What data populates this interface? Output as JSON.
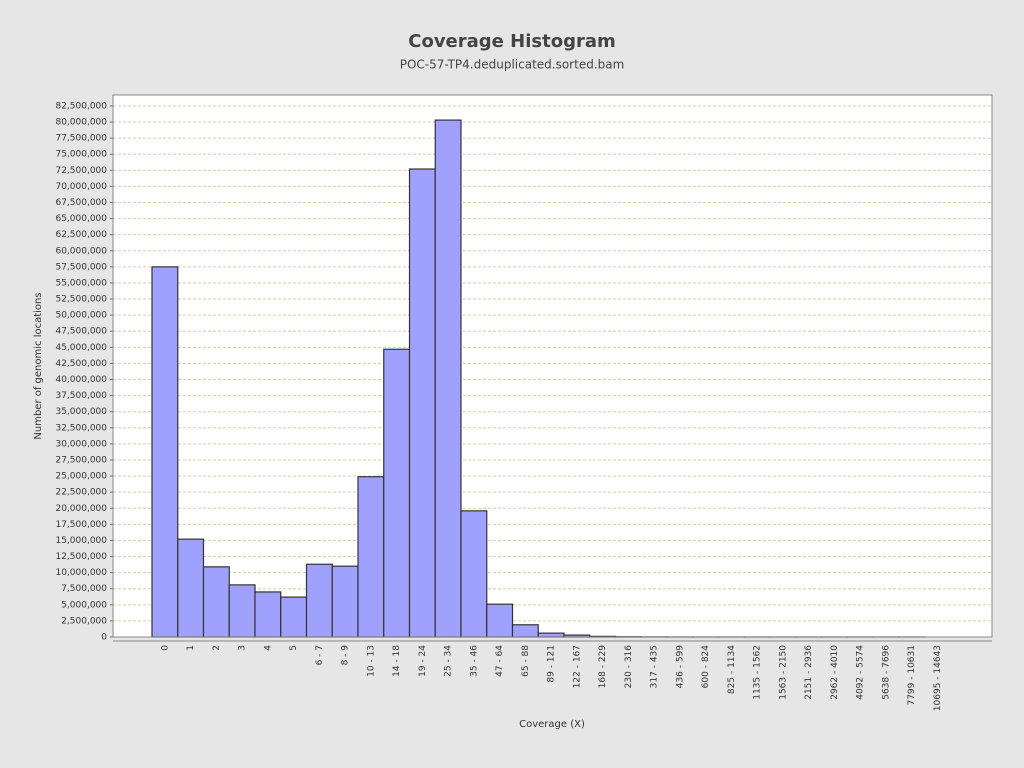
{
  "chart_data": {
    "type": "bar",
    "title": "Coverage Histogram",
    "subtitle": "POC-57-TP4.deduplicated.sorted.bam",
    "x_label": "Coverage (X)",
    "y_label": "Number of genomic locations",
    "categories": [
      "0",
      "1",
      "2",
      "3",
      "4",
      "5",
      "6 - 7",
      "8 - 9",
      "10 - 13",
      "14 - 18",
      "19 - 24",
      "25 - 34",
      "35 - 46",
      "47 - 64",
      "65 - 88",
      "89 - 121",
      "122 - 167",
      "168 - 229",
      "230 - 316",
      "317 - 435",
      "436 - 599",
      "600 - 824",
      "825 - 1134",
      "1135 - 1562",
      "1563 - 2150",
      "2151 - 2936",
      "2962 - 4010",
      "4092 - 5574",
      "5638 - 7696",
      "7799 - 10631",
      "10695 - 14643"
    ],
    "values": [
      57500000,
      15200000,
      10900000,
      8100000,
      7000000,
      6200000,
      11300000,
      11000000,
      24900000,
      44700000,
      72700000,
      80300000,
      19600000,
      5100000,
      1900000,
      600000,
      300000,
      100000,
      40000,
      15000,
      6000,
      2500,
      1000,
      500,
      200,
      100,
      50,
      20,
      10,
      5,
      0
    ],
    "color": "#a0a0ff",
    "ylim": [
      0,
      84200000
    ],
    "yticks": [
      {
        "value": 0,
        "label": "0"
      },
      {
        "value": 2500000,
        "label": "2,500,000"
      },
      {
        "value": 5000000,
        "label": "5,000,000"
      },
      {
        "value": 7500000,
        "label": "7,500,000"
      },
      {
        "value": 10000000,
        "label": "10,000,000"
      },
      {
        "value": 12500000,
        "label": "12,500,000"
      },
      {
        "value": 15000000,
        "label": "15,000,000"
      },
      {
        "value": 17500000,
        "label": "17,500,000"
      },
      {
        "value": 20000000,
        "label": "20,000,000"
      },
      {
        "value": 22500000,
        "label": "22,500,000"
      },
      {
        "value": 25000000,
        "label": "25,000,000"
      },
      {
        "value": 27500000,
        "label": "27,500,000"
      },
      {
        "value": 30000000,
        "label": "30,000,000"
      },
      {
        "value": 32500000,
        "label": "32,500,000"
      },
      {
        "value": 35000000,
        "label": "35,000,000"
      },
      {
        "value": 37500000,
        "label": "37,500,000"
      },
      {
        "value": 40000000,
        "label": "40,000,000"
      },
      {
        "value": 42500000,
        "label": "42,500,000"
      },
      {
        "value": 45000000,
        "label": "45,000,000"
      },
      {
        "value": 47500000,
        "label": "47,500,000"
      },
      {
        "value": 50000000,
        "label": "50,000,000"
      },
      {
        "value": 52500000,
        "label": "52,500,000"
      },
      {
        "value": 55000000,
        "label": "55,000,000"
      },
      {
        "value": 57500000,
        "label": "57,500,000"
      },
      {
        "value": 60000000,
        "label": "60,000,000"
      },
      {
        "value": 62500000,
        "label": "62,500,000"
      },
      {
        "value": 65000000,
        "label": "65,000,000"
      },
      {
        "value": 67500000,
        "label": "67,500,000"
      },
      {
        "value": 70000000,
        "label": "70,000,000"
      },
      {
        "value": 72500000,
        "label": "72,500,000"
      },
      {
        "value": 75000000,
        "label": "75,000,000"
      },
      {
        "value": 77500000,
        "label": "77,500,000"
      },
      {
        "value": 80000000,
        "label": "80,000,000"
      },
      {
        "value": 82500000,
        "label": "82,500,000"
      }
    ],
    "grid": true
  }
}
